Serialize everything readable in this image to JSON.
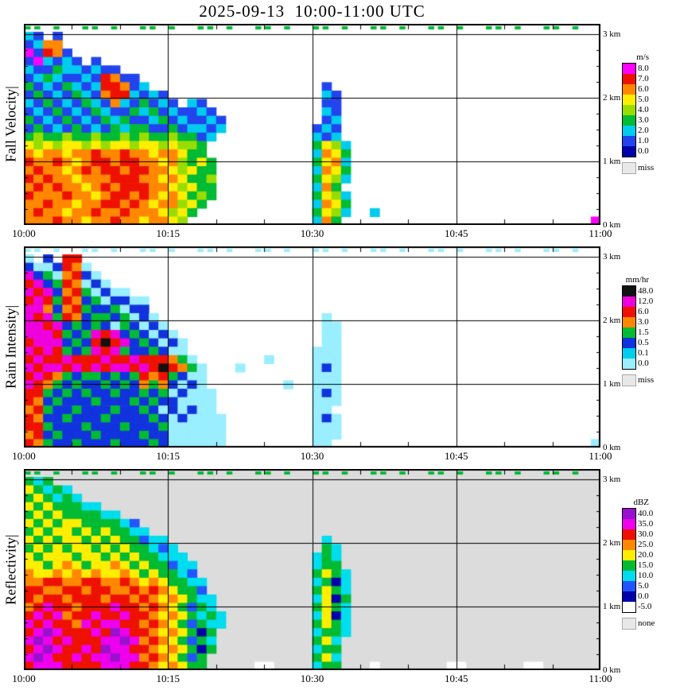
{
  "chart_data": {
    "type": "heatmap",
    "title": "2025-09-13  10:00-11:00 UTC",
    "x_axis": {
      "ticks": [
        "10:00",
        "10:15",
        "10:30",
        "10:45",
        "11:00"
      ],
      "minutes_span": 60
    },
    "y_axis": {
      "ticks": [
        "3 km",
        "2 km",
        "1 km",
        "0 km"
      ],
      "km_range": [
        0,
        3
      ]
    },
    "panels": [
      {
        "label": "Fall Velocity|",
        "units": "m/s",
        "background": "#ffffff",
        "missing": {
          "color": "#e8e8e8",
          "label": "miss"
        },
        "legend": [
          {
            "color": "#ff00ff",
            "label": "8.0"
          },
          {
            "color": "#ee1100",
            "label": "7.0"
          },
          {
            "color": "#ff8800",
            "label": "6.0"
          },
          {
            "color": "#ffee00",
            "label": "5.0"
          },
          {
            "color": "#99dd00",
            "label": "4.0"
          },
          {
            "color": "#00bb33",
            "label": "3.0"
          },
          {
            "color": "#00ccee",
            "label": "2.0"
          },
          {
            "color": "#2244ee",
            "label": "1.0"
          },
          {
            "color": "#0000aa",
            "label": "0.0"
          }
        ],
        "palette": {
          "m": "#ff00ff",
          "r": "#ee1100",
          "o": "#ff8800",
          "y": "#ffee00",
          "g": "#99dd00",
          "G": "#00bb33",
          "c": "#00ccee",
          "b": "#2244ee",
          "B": "#0000aa"
        },
        "rows": [
          "GG.G..GG.G..GG.G..GG.G..GG.G..GG.G..GG.G..GG.G..GG.G..GG.G..",
          "cb.b",
          "bcoo",
          "mbrob",
          "bmcbcb.b",
          "cbbGccbcbb",
          "bcGcbbcbrobb",
          "GbcbGcbcrrobc..................b",
          "bGbcbGcborrcbcb................cb",
          "cbGbcbGcbocbGbcb.cb............bb",
          "bcbGbcbGcbbGcGbcbbcb...........cb",
          "GbcbGbcbGcGbbcGbcbbcb..........bc",
          "bGbcbGbcbGcGGbbGbccbc.........bcb",
          "GgGGgGGgGGgGgGGgGGbc..........cbc",
          "ygygyygygyygyygyggG...........Gygc",
          "oyooyooroorooyooyGG...........coyG",
          "rooroyorrorrooyogGyG..........Gyoc",
          "orooyororrorrooygyGG..........coyG",
          "rorooyooorrrooyoyGGg..........Gygc",
          "ororooyororrrooygyGG..........coG",
          "rooorooyorroroyoyGgG..........Gygc",
          "oorooyoorroroyoogyG...........coyG",
          "orooyoorooroooygyG............Gygc..c",
          "ooorooyoorooyooyg.............coG..........................m"
        ]
      },
      {
        "label": "Rain Intensity|",
        "units": "mm/hr",
        "background": "#ffffff",
        "missing": {
          "color": "#e8e8e8",
          "label": "miss"
        },
        "legend": [
          {
            "color": "#111111",
            "label": "48.0"
          },
          {
            "color": "#ee00dd",
            "label": "12.0"
          },
          {
            "color": "#ee1100",
            "label": "6.0"
          },
          {
            "color": "#ff8800",
            "label": "3.0"
          },
          {
            "color": "#00bb33",
            "label": "1.5"
          },
          {
            "color": "#1133dd",
            "label": "0.5"
          },
          {
            "color": "#00ccee",
            "label": "0.1"
          },
          {
            "color": "#99eeff",
            "label": "0.0"
          }
        ],
        "palette": {
          "k": "#111111",
          "m": "#ee00dd",
          "r": "#ee1100",
          "o": "#ff8800",
          "G": "#00bb33",
          "b": "#1133dd",
          "c": "#99eeff"
        },
        "rows": [
          "cc.c..cc.c..cc.c..cc.c..cc.c..cc.c..cc.c..cc.c..cc.c..cc.c..",
          "c.b.rr",
          "bccbroc",
          "mbGcorbc",
          "rmbGrocbc",
          "mrmborGcbcc",
          "rmrGrobGcbbcc",
          "mmoborGbbGcbb",
          "mrmGrobGGbGcbc.................c",
          "mmrmbGbGbcGbcbc................cc",
          "mmmrGbGmrmbGbcbc...............cc",
          "rmmmbGbrkrmbGbcbc..............cc",
          "mrmrGbGmrmGbbGbcc.............ccc",
          "rmrrmrrrmrrmrrroGc.......c....ccc",
          "mrmmrmrmrmmrmrkroGc...c.......cbc",
          "rmroGbGGbGbGrorGbcc...........ccc",
          "mroGbGbbGbGboGobcbc........c..ccc",
          "rrGbGbGbbGbbGbGcbccc..........cbc",
          "robGbbbGbbbGbGbbcccc..........ccc",
          "orGbbGbbbGbbGbcbcbcc..........cc",
          "robbGbbbGbbbbGbcbcccc.........cbc",
          "rrGbbbGbbbGbbbGcccccc.........ccc",
          "orbGbbbGbbbbGbbcccccc.........ccc",
          "roGbbGbbbGbbbGbcccccc.........cc...........................c"
        ]
      },
      {
        "label": "Reflectivity|",
        "units": "dBZ",
        "background": "#dcdcdc",
        "missing": {
          "color": "#e8e8e8",
          "label": "none"
        },
        "legend": [
          {
            "color": "#9911cc",
            "label": "40.0"
          },
          {
            "color": "#ee00ee",
            "label": "35.0"
          },
          {
            "color": "#ee1100",
            "label": "30.0"
          },
          {
            "color": "#ff8800",
            "label": "25.0"
          },
          {
            "color": "#ffee00",
            "label": "20.0"
          },
          {
            "color": "#00bb33",
            "label": "15.0"
          },
          {
            "color": "#00ddee",
            "label": "10.0"
          },
          {
            "color": "#2255ff",
            "label": "5.0"
          },
          {
            "color": "#0000aa",
            "label": "0.0"
          },
          {
            "color": "#ffffff",
            "label": "-5.0"
          }
        ],
        "palette": {
          "p": "#9911cc",
          "m": "#ee00ee",
          "r": "#ee1100",
          "o": "#ff8800",
          "y": "#ffee00",
          "G": "#00bb33",
          "c": "#00ddee",
          "b": "#2255ff",
          "B": "#0000aa",
          "w": "#ffffff"
        },
        "rows": [
          "GG.G..GG.G..GG.G..GG.G..GG.G..GG.G..GG.G..GG.G..GG.G..GG.G..",
          "GcG",
          "yGcGc",
          "GyGcGc",
          "yGyGGGcc",
          "GyGyGGGGcc",
          "yGyGyyGGGGcb",
          "GyGyyGyGyGGcc",
          "yGyGyyGyGyGGbcc................c",
          "GyGyGyyGyGyGGcbc...............Gc",
          "yGyyyGyyGyGyGGccc.............cGc",
          "yyGyoyGyyoyGyGGbcc............cGG",
          "oyyoyoyoyyoyGyGGcb............GyGc",
          "oorroorrooroyoyGGcc...........cGBc",
          "rroorrorroororoyGGb...........GyGc",
          "rorrorrrorroroyoyGcc..........cyBG",
          "ormrrorrrmrroroyGbGc..........GyGc",
          "rmrmorrmrrmrroyoyGcGc.........cyBc",
          "mrmrromrmmrroroyGbGcc.........GyGc",
          "rmpmrrrmrpmrroyoyGBG..........cGGc",
          "mpmrmrrrmmpmoroyGbGc..........Gyc",
          "rmpmrrmrpmmrroyoyGBG..........cGG",
          "mpmrrmrmmpmmoroyGbG...........Gyc",
          "rmmmrrrrmmmrroyoyGG.....ww....cGG...w.......ww......ww"
        ]
      }
    ]
  }
}
